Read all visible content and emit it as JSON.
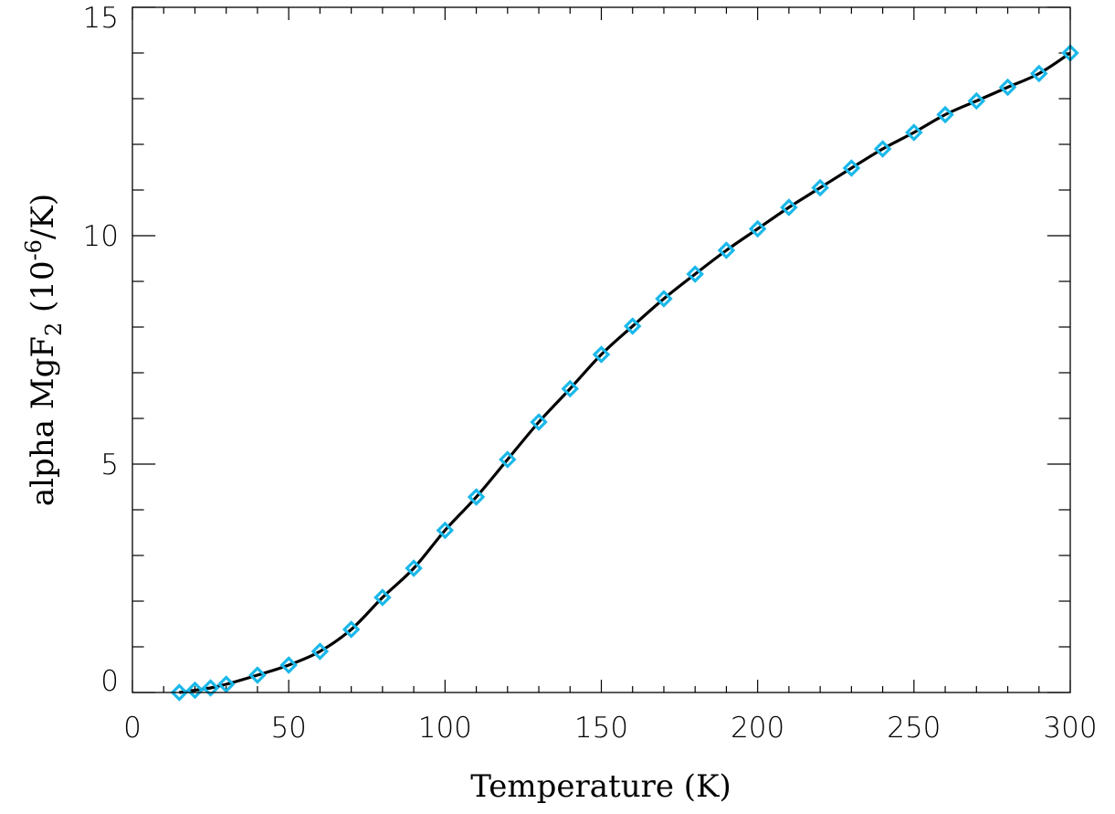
{
  "chart_data": {
    "type": "line",
    "title": "",
    "xlabel": "Temperature (K)",
    "ylabel": {
      "prefix": "alpha MgF",
      "subscript": "2",
      "unit_open": " (10",
      "exponent": "-6",
      "unit_close": "/K)"
    },
    "xlim": [
      0,
      300
    ],
    "ylim": [
      0,
      15
    ],
    "x_ticks": [
      0,
      50,
      100,
      150,
      200,
      250,
      300
    ],
    "x_tick_labels": [
      "0",
      "50",
      "100",
      "150",
      "200",
      "250",
      "300"
    ],
    "y_ticks": [
      0,
      5,
      10,
      15
    ],
    "y_tick_labels": [
      "0",
      "5",
      "10",
      "15"
    ],
    "x_minor_step": 10,
    "y_minor_step": 1,
    "grid": false,
    "line_color": "#000000",
    "marker": "diamond",
    "marker_color": "#1ab8ea",
    "series": [
      {
        "x": [
          15,
          20,
          25,
          30,
          40,
          50,
          60,
          70,
          80,
          90,
          100,
          110,
          120,
          130,
          140,
          150,
          160,
          170,
          180,
          190,
          200,
          210,
          220,
          230,
          240,
          250,
          260,
          270,
          280,
          290,
          300
        ],
        "y": [
          0.0,
          0.05,
          0.1,
          0.18,
          0.38,
          0.6,
          0.9,
          1.38,
          2.08,
          2.72,
          3.55,
          4.28,
          5.1,
          5.92,
          6.65,
          7.4,
          8.02,
          8.62,
          9.16,
          9.68,
          10.15,
          10.62,
          11.05,
          11.48,
          11.9,
          12.26,
          12.65,
          12.95,
          13.25,
          13.55,
          14.0
        ]
      }
    ]
  }
}
